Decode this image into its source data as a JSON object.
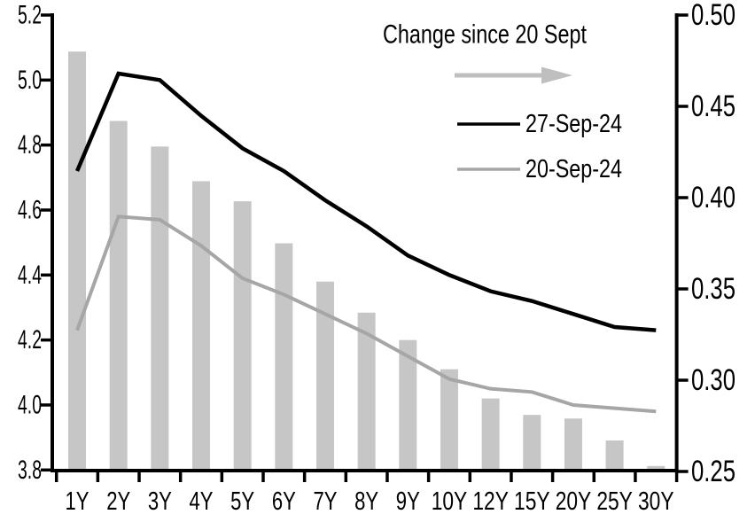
{
  "chart_data": {
    "type": "combo-bar-line",
    "categories": [
      "1Y",
      "2Y",
      "3Y",
      "4Y",
      "5Y",
      "6Y",
      "7Y",
      "8Y",
      "9Y",
      "10Y",
      "12Y",
      "15Y",
      "20Y",
      "25Y",
      "30Y"
    ],
    "series": [
      {
        "name": "27-Sep-24",
        "chart_type": "line",
        "axis": "left",
        "color": "#000000",
        "values": [
          4.72,
          5.02,
          5.0,
          4.89,
          4.79,
          4.72,
          4.63,
          4.55,
          4.46,
          4.4,
          4.35,
          4.32,
          4.28,
          4.24,
          4.23
        ]
      },
      {
        "name": "20-Sep-24",
        "chart_type": "line",
        "axis": "left",
        "color": "#a6a6a6",
        "values": [
          4.23,
          4.58,
          4.57,
          4.49,
          4.39,
          4.34,
          4.28,
          4.22,
          4.15,
          4.08,
          4.05,
          4.04,
          4.0,
          3.99,
          3.98
        ]
      },
      {
        "name": "Change since 20 Sept",
        "chart_type": "bar",
        "axis": "right",
        "color": "#c6c6c6",
        "values": [
          0.48,
          0.442,
          0.428,
          0.409,
          0.398,
          0.375,
          0.354,
          0.337,
          0.322,
          0.306,
          0.29,
          0.281,
          0.279,
          0.267,
          0.253
        ]
      }
    ],
    "left_axis": {
      "min": 3.8,
      "max": 5.2,
      "ticks": [
        "5.2",
        "5.0",
        "4.8",
        "4.6",
        "4.4",
        "4.2",
        "4.0",
        "3.8"
      ]
    },
    "right_axis": {
      "min": 0.25,
      "max": 0.5,
      "ticks": [
        "0.50",
        "0.45",
        "0.40",
        "0.35",
        "0.30",
        "0.25"
      ]
    },
    "legend": {
      "title": "Change since 20 Sept",
      "arrow_icon": "right-arrow-icon",
      "arrow_color": "#bfbfbf",
      "entries": [
        "27-Sep-24",
        "20-Sep-24"
      ],
      "position": "top-center-inside"
    },
    "grid": false,
    "title": "",
    "xlabel": "",
    "ylabel": ""
  }
}
